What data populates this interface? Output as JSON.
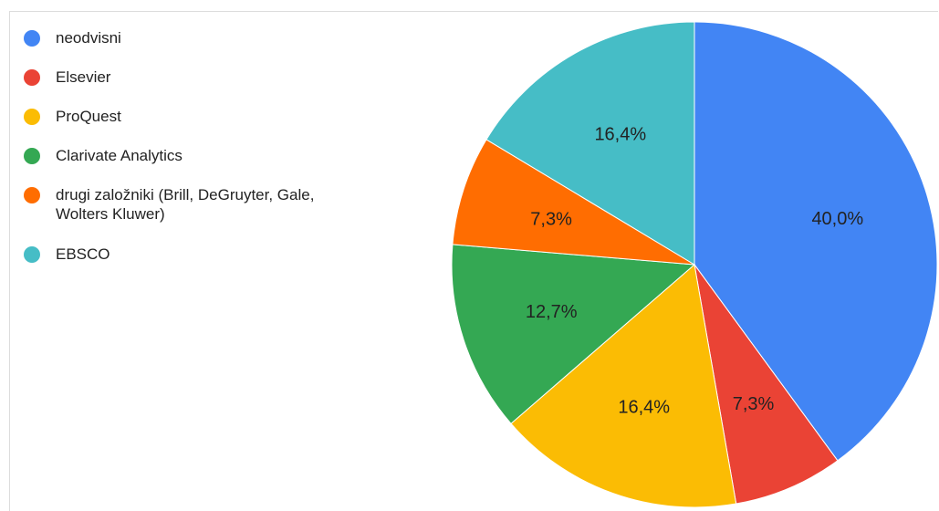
{
  "chart_data": {
    "type": "pie",
    "title": "",
    "legend_position": "left",
    "slices": [
      {
        "label": "neodvisni",
        "value": 40.0,
        "display": "40,0%",
        "color": "#4285f4"
      },
      {
        "label": "Elsevier",
        "value": 7.3,
        "display": "7,3%",
        "color": "#ea4335"
      },
      {
        "label": "ProQuest",
        "value": 16.4,
        "display": "16,4%",
        "color": "#fbbc04"
      },
      {
        "label": "Clarivate Analytics",
        "value": 12.7,
        "display": "12,7%",
        "color": "#34a853"
      },
      {
        "label": "drugi založniki (Brill, DeGruyter, Gale, Wolters Kluwer)",
        "value": 7.3,
        "display": "7,3%",
        "color": "#ff6d01"
      },
      {
        "label": "EBSCO",
        "value": 16.4,
        "display": "16,4%",
        "color": "#46bdc6"
      }
    ]
  }
}
